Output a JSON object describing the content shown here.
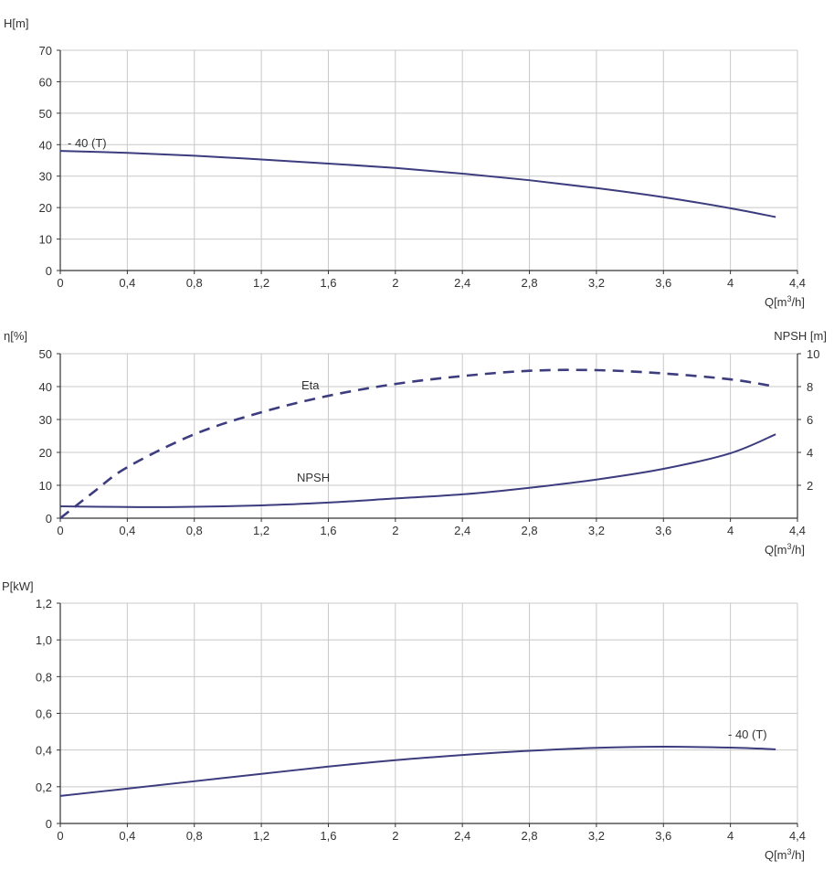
{
  "colors": {
    "curve": "#3c3c7e",
    "grid": "#c8c8c8",
    "axis": "#333333",
    "text": "#333333"
  },
  "chart_data": [
    {
      "type": "line",
      "ylabel": "H[m]",
      "xlabel_main": "Q[m",
      "xlabel_sup": "3",
      "xlabel_tail": "/h]",
      "xlim": [
        0,
        4.4
      ],
      "ylim": [
        0,
        70
      ],
      "x_ticks": [
        "0",
        "0,4",
        "0,8",
        "1,2",
        "1,6",
        "2",
        "2,4",
        "2,8",
        "3,2",
        "3,6",
        "4",
        "4,4"
      ],
      "y_ticks": [
        "0",
        "10",
        "20",
        "30",
        "40",
        "50",
        "60",
        "70"
      ],
      "grid": true,
      "series": [
        {
          "name": "- 40 (T)",
          "axis": "left",
          "style": "solid",
          "points": [
            [
              0,
              38.0
            ],
            [
              0.4,
              37.4
            ],
            [
              0.8,
              36.5
            ],
            [
              1.2,
              35.3
            ],
            [
              1.6,
              34.0
            ],
            [
              2.0,
              32.6
            ],
            [
              2.4,
              30.8
            ],
            [
              2.8,
              28.7
            ],
            [
              3.2,
              26.2
            ],
            [
              3.6,
              23.3
            ],
            [
              4.0,
              19.8
            ],
            [
              4.27,
              17.0
            ]
          ]
        }
      ]
    },
    {
      "type": "line",
      "ylabel": "η[%]",
      "y2label": "NPSH [m]",
      "xlabel_main": "Q[m",
      "xlabel_sup": "3",
      "xlabel_tail": "/h]",
      "xlim": [
        0,
        4.4
      ],
      "ylim": [
        0,
        50
      ],
      "y2lim": [
        0,
        10
      ],
      "x_ticks": [
        "0",
        "0,4",
        "0,8",
        "1,2",
        "1,6",
        "2",
        "2,4",
        "2,8",
        "3,2",
        "3,6",
        "4",
        "4,4"
      ],
      "y_ticks": [
        "0",
        "10",
        "20",
        "30",
        "40",
        "50"
      ],
      "y2_ticks": [
        "2",
        "4",
        "6",
        "8",
        "10"
      ],
      "grid": true,
      "series": [
        {
          "name": "Eta",
          "axis": "left",
          "style": "dashed",
          "points": [
            [
              0,
              0
            ],
            [
              0.2,
              8.0
            ],
            [
              0.4,
              15.5
            ],
            [
              0.8,
              25.5
            ],
            [
              1.2,
              32.2
            ],
            [
              1.6,
              37.2
            ],
            [
              2.0,
              40.8
            ],
            [
              2.4,
              43.2
            ],
            [
              2.8,
              44.8
            ],
            [
              3.2,
              45.0
            ],
            [
              3.6,
              44.0
            ],
            [
              4.0,
              42.2
            ],
            [
              4.27,
              40.0
            ]
          ]
        },
        {
          "name": "NPSH",
          "axis": "right",
          "style": "solid",
          "points": [
            [
              0,
              0.72
            ],
            [
              0.4,
              0.68
            ],
            [
              0.7,
              0.68
            ],
            [
              1.2,
              0.78
            ],
            [
              1.6,
              0.95
            ],
            [
              2.0,
              1.2
            ],
            [
              2.4,
              1.45
            ],
            [
              2.8,
              1.85
            ],
            [
              3.2,
              2.35
            ],
            [
              3.6,
              3.0
            ],
            [
              4.0,
              3.95
            ],
            [
              4.27,
              5.1
            ]
          ]
        }
      ]
    },
    {
      "type": "line",
      "ylabel": "P[kW]",
      "xlabel_main": "Q[m",
      "xlabel_sup": "3",
      "xlabel_tail": "/h]",
      "xlim": [
        0,
        4.4
      ],
      "ylim": [
        0,
        1.2
      ],
      "x_ticks": [
        "0",
        "0,4",
        "0,8",
        "1,2",
        "1,6",
        "2",
        "2,4",
        "2,8",
        "3,2",
        "3,6",
        "4",
        "4,4"
      ],
      "y_ticks": [
        "0",
        "0,2",
        "0,4",
        "0,6",
        "0,8",
        "1,0",
        "1,2"
      ],
      "grid": true,
      "series": [
        {
          "name": "- 40 (T)",
          "axis": "left",
          "style": "solid",
          "points": [
            [
              0,
              0.15
            ],
            [
              0.4,
              0.19
            ],
            [
              0.8,
              0.23
            ],
            [
              1.2,
              0.27
            ],
            [
              1.6,
              0.31
            ],
            [
              2.0,
              0.345
            ],
            [
              2.4,
              0.373
            ],
            [
              2.8,
              0.396
            ],
            [
              3.2,
              0.412
            ],
            [
              3.6,
              0.418
            ],
            [
              4.0,
              0.413
            ],
            [
              4.27,
              0.404
            ]
          ]
        }
      ]
    }
  ]
}
